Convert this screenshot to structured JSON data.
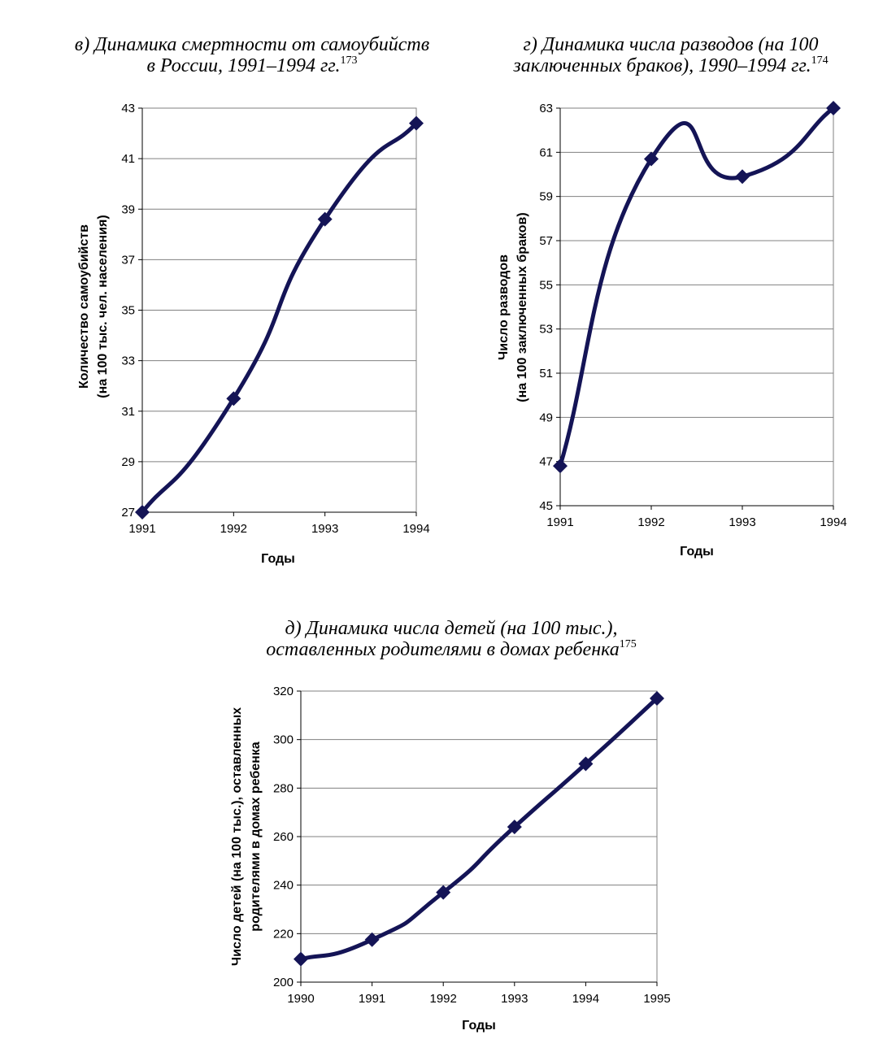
{
  "chart_data": [
    {
      "type": "line",
      "title_line1": "в) Динамика смертности от самоубийств",
      "title_line2": "в России, 1991–1994 гг.",
      "footnote": "173",
      "categories": [
        "1991",
        "1992",
        "1993",
        "1994"
      ],
      "x": [
        1991,
        1992,
        1993,
        1994
      ],
      "values": [
        27.0,
        31.5,
        38.6,
        42.4
      ],
      "ylim": [
        27,
        43
      ],
      "yticks": [
        27,
        29,
        31,
        33,
        35,
        37,
        39,
        41,
        43
      ],
      "xlabel": "Годы",
      "ylabel_line1": "Количество самоубийств",
      "ylabel_line2": "(на 100 тыс. чел. населения)",
      "grid": true,
      "smoothed": true,
      "line_color": "#141456"
    },
    {
      "type": "line",
      "title_line1": "г) Динамика числа разводов (на 100",
      "title_line2": "заключенных браков), 1990–1994 гг.",
      "footnote": "174",
      "categories": [
        "1991",
        "1992",
        "1993",
        "1994"
      ],
      "x": [
        1991,
        1992,
        1993,
        1994
      ],
      "values": [
        46.8,
        60.7,
        59.9,
        63.0
      ],
      "ylim": [
        45,
        63
      ],
      "yticks": [
        45,
        47,
        49,
        51,
        53,
        55,
        57,
        59,
        61,
        63
      ],
      "xlabel": "Годы",
      "ylabel_line1": "Число разводов",
      "ylabel_line2": "(на 100 заключенных браков)",
      "grid": true,
      "smoothed": true,
      "line_color": "#141456"
    },
    {
      "type": "line",
      "title_line1": "д) Динамика числа детей (на 100 тыс.),",
      "title_line2": "оставленных родителями в домах ребенка",
      "footnote": "175",
      "categories": [
        "1990",
        "1991",
        "1992",
        "1993",
        "1994",
        "1995"
      ],
      "x": [
        1990,
        1991,
        1992,
        1993,
        1994,
        1995
      ],
      "values": [
        209.5,
        217.5,
        237.0,
        264.0,
        290.0,
        317.0
      ],
      "ylim": [
        200,
        320
      ],
      "yticks": [
        200,
        220,
        240,
        260,
        280,
        300,
        320
      ],
      "xlabel": "Годы",
      "ylabel_line1": "Число детей (на 100 тыс.), оставленных",
      "ylabel_line2": "родителями в домах ребенка",
      "grid": true,
      "smoothed": true,
      "line_color": "#141456"
    }
  ]
}
